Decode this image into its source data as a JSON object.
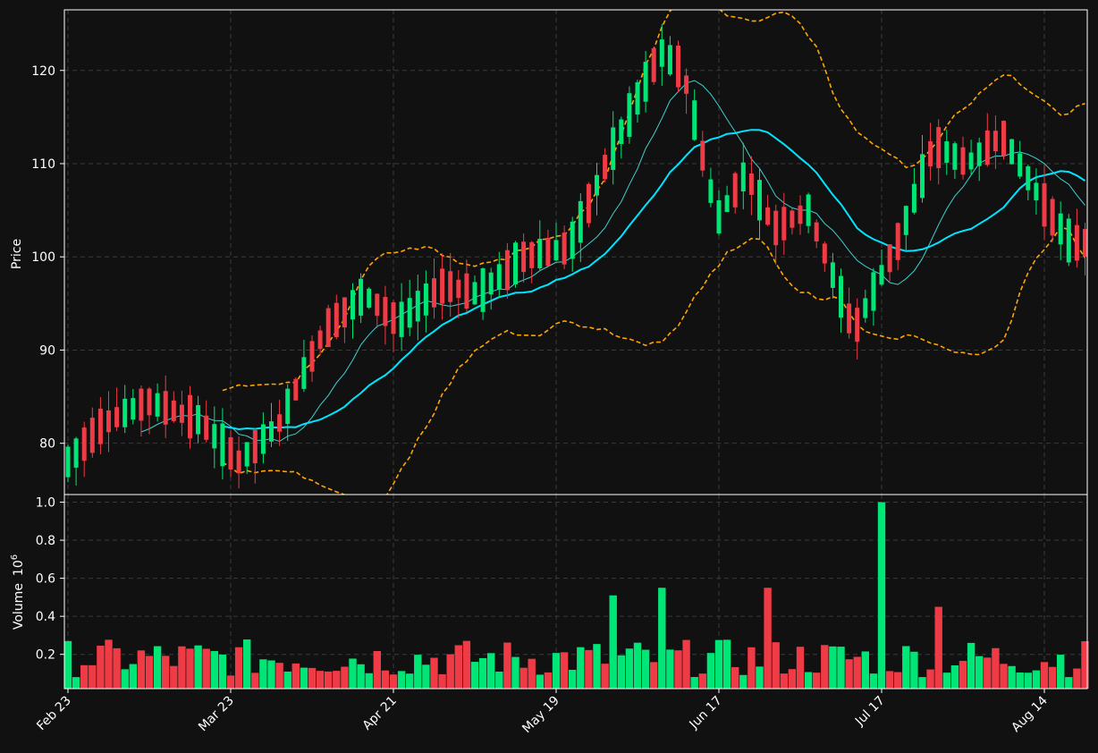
{
  "colors": {
    "background": "#111111",
    "grid": "#3a3a3a",
    "frame": "#ffffff",
    "up": "#00e676",
    "down": "#ef3b45",
    "ma_short": "#3fd0d0",
    "ma_long": "#00e5ff",
    "bands": "#ffa500",
    "text": "#ffffff"
  },
  "chart_data": [
    {
      "type": "candlestick",
      "panel": "price",
      "ylabel": "Price",
      "yticks": [
        80,
        90,
        100,
        110,
        120
      ],
      "ylim": [
        74.5,
        126.5
      ],
      "grid": true,
      "xticks": [
        "Feb 23",
        "Mar 23",
        "Apr 21",
        "May 19",
        "Jun 17",
        "Jul 17",
        "Aug 14"
      ],
      "overlays": [
        "moving average (short)",
        "moving average (long)",
        "upper band",
        "lower band"
      ],
      "ohlc_key_points": [
        {
          "x": "Feb 23",
          "close": 78
        },
        {
          "x": "Mar 23",
          "close": 82
        },
        {
          "x": "Apr 21",
          "close": 92
        },
        {
          "x": "May 19",
          "close": 95
        },
        {
          "x": "Jun 17",
          "close": 112
        },
        {
          "x": "Jul 17",
          "close": 106
        },
        {
          "x": "Aug 14",
          "close": 113
        },
        {
          "x": "end",
          "close": 101.5
        }
      ]
    },
    {
      "type": "bar",
      "panel": "volume",
      "ylabel": "Volume",
      "ylabel_exponent": "10",
      "ylabel_exponent_power": "6",
      "yticks": [
        "0.2",
        "0.4",
        "0.6",
        "0.8",
        "1.0"
      ],
      "ylim": [
        0.02,
        1.04
      ],
      "grid": true
    }
  ],
  "labels": {
    "price_axis": "Price",
    "volume_axis": "Volume",
    "volume_exp_base": "10",
    "volume_exp_power": "6"
  }
}
